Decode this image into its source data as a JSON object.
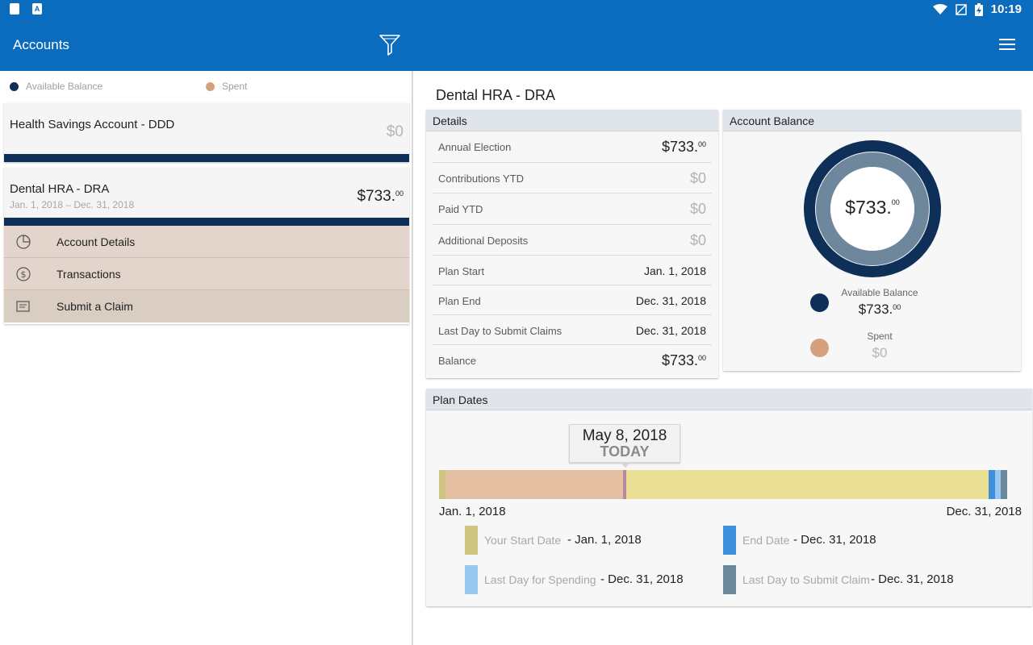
{
  "status_bar": {
    "time": "10:19"
  },
  "app_bar": {
    "title": "Accounts"
  },
  "legend": {
    "available_label": "Available Balance",
    "spent_label": "Spent"
  },
  "colors": {
    "primary": "#0b6bbd",
    "available": "#0e2f57",
    "spent": "#d4a17c"
  },
  "accounts": [
    {
      "name": "Health Savings Account - DDD",
      "balance": "$0",
      "dates": ""
    },
    {
      "name": "Dental HRA - DRA",
      "balance": "$733.",
      "balance_cents": "00",
      "dates": "Jan. 1, 2018 – Dec. 31, 2018"
    }
  ],
  "account_menu": [
    {
      "label": "Account Details",
      "icon": "pie-chart-icon"
    },
    {
      "label": "Transactions",
      "icon": "dollar-cycle-icon"
    },
    {
      "label": "Submit a Claim",
      "icon": "claim-icon"
    }
  ],
  "selected_account": {
    "title": "Dental HRA - DRA"
  },
  "details": {
    "header": "Details",
    "rows": [
      {
        "label": "Annual Election",
        "value": "$733.",
        "cents": "00"
      },
      {
        "label": "Contributions YTD",
        "value": "$0"
      },
      {
        "label": "Paid YTD",
        "value": "$0"
      },
      {
        "label": "Additional Deposits",
        "value": "$0"
      },
      {
        "label": "Plan Start",
        "value": "Jan. 1, 2018"
      },
      {
        "label": "Plan End",
        "value": "Dec. 31, 2018"
      },
      {
        "label": "Last Day to Submit Claims",
        "value": "Dec. 31, 2018"
      },
      {
        "label": "Balance",
        "value": "$733.",
        "cents": "00"
      }
    ]
  },
  "account_balance": {
    "header": "Account Balance",
    "center_value": "$733.",
    "center_cents": "00",
    "available_fraction": 1.0,
    "available_label": "Available Balance",
    "available_value": "$733.",
    "available_cents": "00",
    "spent_label": "Spent",
    "spent_value": "$0"
  },
  "plan_dates": {
    "header": "Plan Dates",
    "today_date": "May 8, 2018",
    "today_label": "TODAY",
    "start": "Jan. 1, 2018",
    "end": "Dec. 31, 2018",
    "legend": [
      {
        "name": "Your Start Date",
        "value": "- Jan. 1, 2018",
        "color": "#cdc57f"
      },
      {
        "name": "End Date",
        "value": "- Dec. 31, 2018",
        "color": "#3e8fdc"
      },
      {
        "name": "Last Day for Spending",
        "value": "- Dec. 31, 2018",
        "color": "#98c8ee"
      },
      {
        "name": "Last Day to Submit Claim",
        "value": "- Dec. 31, 2018",
        "color": "#6b879a"
      }
    ]
  }
}
